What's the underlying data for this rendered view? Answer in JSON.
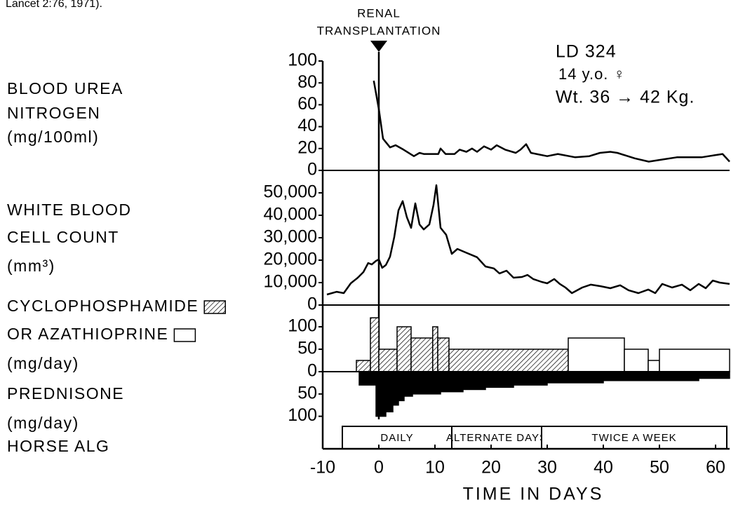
{
  "caption": "Lancet 2:76, 1971).",
  "annotation": [
    "RENAL",
    "TRANSPLANTATION"
  ],
  "patient": [
    "LD 324",
    "14 y.o. ♀",
    "Wt. 36 → 42 Kg."
  ],
  "chart_data": [
    {
      "type": "line",
      "ylabel": [
        "BLOOD UREA",
        "NITROGEN",
        "(mg/100ml)"
      ],
      "color": "#000000",
      "ylim": [
        0,
        100
      ],
      "yticks": [
        0,
        20,
        40,
        60,
        80,
        100
      ],
      "x": [
        -0.9,
        0,
        0.75,
        2,
        3,
        4.4,
        6.25,
        7.25,
        8,
        10.6,
        11,
        11.9,
        13.5,
        14.4,
        15.6,
        16.6,
        17.5,
        18.75,
        20,
        21,
        22.5,
        24.4,
        25.25,
        26.25,
        27.1,
        30,
        31.9,
        35,
        37.5,
        39.4,
        41.25,
        42.5,
        45.6,
        48.1,
        50.6,
        53.1,
        57.5,
        61.25,
        62.5
      ],
      "values": [
        82,
        56,
        29,
        21,
        23,
        19,
        13,
        16,
        15,
        15,
        20,
        15,
        15,
        19,
        17,
        20,
        17,
        22,
        19,
        23,
        19,
        16,
        19,
        24,
        16,
        13,
        15,
        12,
        13,
        16,
        17,
        16,
        11,
        8,
        10,
        12,
        12,
        15,
        8
      ]
    },
    {
      "type": "line",
      "ylabel": [
        "WHITE BLOOD",
        "CELL COUNT",
        "(mm³)"
      ],
      "color": "#000000",
      "ylim": [
        0,
        55000
      ],
      "yticks": [
        0,
        {
          "value": 10000,
          "label": "10,000"
        },
        {
          "value": 20000,
          "label": "20,000"
        },
        {
          "value": 30000,
          "label": "30,000"
        },
        {
          "value": 40000,
          "label": "40,000"
        },
        {
          "value": 50000,
          "label": "50,000"
        }
      ],
      "x": [
        -9.25,
        -7.5,
        -6.25,
        -5,
        -3.75,
        -2.75,
        -1.9,
        -1.25,
        -0.5,
        0,
        0.6,
        1.25,
        2,
        2.75,
        3.5,
        4.25,
        5,
        5.75,
        6.5,
        7.25,
        8,
        9,
        9.75,
        10.25,
        11,
        12,
        13,
        14,
        15.5,
        17.5,
        19,
        20.5,
        21.5,
        22.75,
        24,
        25.5,
        26.5,
        27.5,
        29,
        30,
        31.25,
        32.25,
        33.25,
        34.4,
        36.25,
        37.75,
        39.5,
        41.25,
        43,
        44.5,
        46.25,
        48,
        49.25,
        50.5,
        52.25,
        54,
        55.5,
        57,
        58.25,
        59.5,
        60.75,
        62.5
      ],
      "values": [
        4700,
        5900,
        5300,
        9700,
        12200,
        14700,
        18700,
        18100,
        19700,
        20300,
        16600,
        17800,
        21600,
        30300,
        42200,
        46300,
        39100,
        34400,
        45300,
        35900,
        33700,
        35900,
        44700,
        53400,
        34400,
        31300,
        22800,
        25000,
        23400,
        21300,
        17200,
        16300,
        14100,
        15300,
        12200,
        12500,
        13400,
        11600,
        10300,
        9700,
        11600,
        9400,
        7800,
        5300,
        7800,
        9100,
        8400,
        7500,
        8800,
        6600,
        5300,
        6900,
        5300,
        9400,
        7800,
        9100,
        6600,
        9400,
        7500,
        10900,
        10000,
        9400
      ]
    },
    {
      "type": "step",
      "ylabel": [
        "(mg/day)"
      ],
      "ylim": [
        0,
        125
      ],
      "yticks": [
        0,
        50,
        100
      ],
      "series": [
        {
          "name": "CYCLOPHOSPHAMIDE",
          "color": "#000000",
          "pattern": "hatch",
          "bins": [
            -4,
            -1.5,
            0,
            3.25,
            5.75,
            9.6,
            10.5,
            12.5,
            33.75
          ],
          "values": [
            25,
            120,
            50,
            100,
            75,
            100,
            75,
            50
          ]
        },
        {
          "name": "OR AZATHIOPRINE",
          "color": "#ffffff",
          "bins": [
            33.75,
            43.75,
            48,
            50,
            62.5
          ],
          "values": [
            75,
            50,
            25,
            50
          ]
        }
      ]
    },
    {
      "type": "step",
      "ylabel": [
        "(mg/day)"
      ],
      "ylim": [
        0,
        110
      ],
      "y_direction": "down",
      "yticks": [
        50,
        100
      ],
      "series": [
        {
          "name": "PREDNISONE",
          "color": "#000000",
          "bins": [
            -3.5,
            -0.5,
            1.25,
            2.5,
            3.5,
            4.5,
            6,
            11,
            15,
            19,
            24,
            30,
            40,
            57,
            62.5
          ],
          "values": [
            30,
            100,
            90,
            75,
            65,
            55,
            50,
            45,
            40,
            35,
            30,
            25,
            20,
            15
          ]
        }
      ]
    },
    {
      "type": "timeline",
      "title": "HORSE ALG",
      "periods": [
        {
          "label": "DAILY",
          "start": -6.5,
          "end": 13
        },
        {
          "label": "ALTERNATE DAYS",
          "start": 13,
          "end": 29
        },
        {
          "label": "TWICE A WEEK",
          "start": 29,
          "end": 62
        }
      ],
      "xlim": [
        -10,
        62.5
      ],
      "xticks": [
        -10,
        0,
        10,
        20,
        30,
        40,
        50,
        60
      ],
      "xlabel": "TIME IN DAYS"
    }
  ]
}
